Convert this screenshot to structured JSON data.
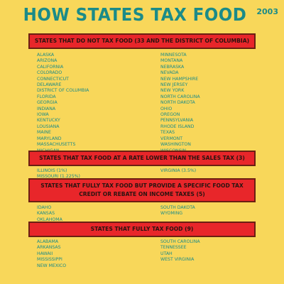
{
  "header": {
    "title": "HOW STATES TAX FOOD",
    "year": "2003"
  },
  "sections": [
    {
      "heading": "STATES THAT DO NOT TAX FOOD (33 AND THE DISTRICT OF COLUMBIA)",
      "left": [
        "ALASKA",
        "ARIZONA",
        "CALIFORNIA",
        "COLORADO",
        "CONNECTICUT",
        "DELAWARE",
        "DISTRICT OF COLUMBIA",
        "FLORIDA",
        "GEORGIA",
        "INDIANA",
        "IOWA",
        "KENTUCKY",
        "LOUSIANA",
        "MAINE",
        "MARYLAND",
        "MASSACHUSETTS",
        "MICHIGAN"
      ],
      "right": [
        "MINNESOTA",
        "MONTANA",
        "NEBRASKA",
        "NEVADA",
        "NEW HAMPSHIRE",
        "NEW JERSEY",
        "NEW YORK",
        "NORTH CAROLINA",
        "NORTH DAKOTA",
        "OHIO",
        "OREGON",
        "PENNSYLVANIA",
        "RHODE ISLAND",
        "TEXAS",
        "VERMONT",
        "WASHINGTON",
        "WISCONSIN"
      ]
    },
    {
      "heading": "STATES THAT TAX FOOD AT A RATE LOWER THAN THE SALES TAX (3)",
      "left": [
        "ILLINOIS (1%)",
        "MISSOURI (1.225%)"
      ],
      "right": [
        "VIRGINIA (3.5%)"
      ]
    },
    {
      "heading": "STATES THAT FULLY TAX FOOD BUT PROVIDE A SPECIFIC FOOD TAX CREDIT OR REBATE ON INCOME TAXES (5)",
      "left": [
        "IDAHO",
        "KANSAS",
        "OKLAHOMA"
      ],
      "right": [
        "SOUTH DAKOTA",
        "WYOMING"
      ]
    },
    {
      "heading": "STATES THAT FULLY TAX FOOD (9)",
      "left": [
        "ALABAMA",
        "ARKANSAS",
        "HAWAII",
        "MISSISSIPPI",
        "NEW MEXICO"
      ],
      "right": [
        "SOUTH CAROLINA",
        "TENNESSEE",
        "UTAH",
        "WEST VIRGINIA"
      ]
    }
  ]
}
